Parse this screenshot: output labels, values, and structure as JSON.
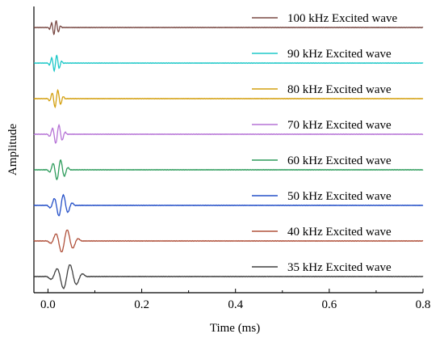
{
  "chart_data": {
    "type": "line",
    "xlabel": "Time (ms)",
    "ylabel": "Amplitude",
    "xlim": [
      -0.03,
      0.8
    ],
    "x_ticks": [
      "0.0",
      "0.2",
      "0.4",
      "0.6",
      "0.8"
    ],
    "x_tick_values": [
      0.0,
      0.2,
      0.4,
      0.6,
      0.8
    ],
    "grid": false,
    "legend_placement": "right of each trace",
    "series": [
      {
        "name": "100 kHz Excited wave",
        "color": "#7a4a45",
        "frequency_khz": 100,
        "burst_center_ms": 0.015,
        "burst_duration_ms": 0.035
      },
      {
        "name": "90 kHz Excited wave",
        "color": "#1ec8c8",
        "frequency_khz": 90,
        "burst_center_ms": 0.016,
        "burst_duration_ms": 0.04
      },
      {
        "name": "80 kHz Excited wave",
        "color": "#d4a010",
        "frequency_khz": 80,
        "burst_center_ms": 0.018,
        "burst_duration_ms": 0.045
      },
      {
        "name": "70 kHz Excited wave",
        "color": "#b673d6",
        "frequency_khz": 70,
        "burst_center_ms": 0.02,
        "burst_duration_ms": 0.05
      },
      {
        "name": "60 kHz Excited wave",
        "color": "#2e9c5c",
        "frequency_khz": 60,
        "burst_center_ms": 0.023,
        "burst_duration_ms": 0.058
      },
      {
        "name": "50 kHz Excited wave",
        "color": "#2550c8",
        "frequency_khz": 50,
        "burst_center_ms": 0.028,
        "burst_duration_ms": 0.07
      },
      {
        "name": "40 kHz Excited wave",
        "color": "#b0503a",
        "frequency_khz": 40,
        "burst_center_ms": 0.035,
        "burst_duration_ms": 0.085
      },
      {
        "name": "35 kHz Excited wave",
        "color": "#404040",
        "frequency_khz": 35,
        "burst_center_ms": 0.04,
        "burst_duration_ms": 0.1
      }
    ]
  }
}
